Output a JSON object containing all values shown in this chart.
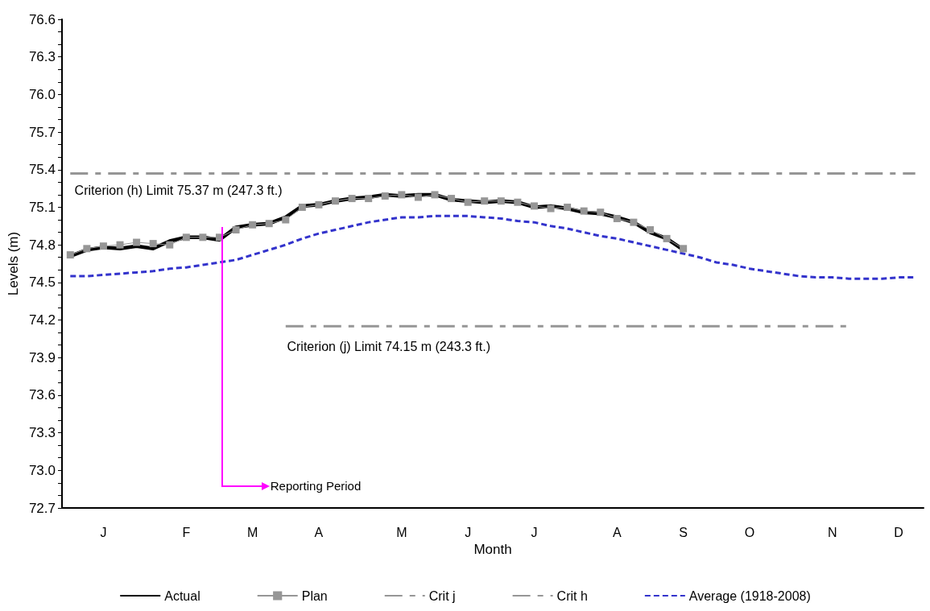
{
  "chart_data": {
    "type": "line",
    "xlabel": "Month",
    "ylabel": "Levels (m)",
    "categories": [
      null,
      null,
      "J",
      null,
      null,
      null,
      null,
      "F",
      null,
      null,
      null,
      "M",
      null,
      null,
      null,
      "A",
      null,
      null,
      null,
      null,
      "M",
      null,
      null,
      null,
      "J",
      null,
      null,
      null,
      "J",
      null,
      null,
      null,
      null,
      "A",
      null,
      null,
      null,
      "S",
      null,
      null,
      null,
      "O",
      null,
      null,
      null,
      null,
      "N",
      null,
      null,
      null,
      "D",
      null
    ],
    "ylim": [
      72.7,
      76.6
    ],
    "yticks": [
      72.7,
      {
        "value": 73,
        "label": "73.0"
      },
      73.3,
      73.6,
      73.9,
      74.2,
      74.5,
      74.8,
      75.1,
      75.4,
      75.7,
      {
        "value": 76,
        "label": "76.0"
      },
      76.3,
      76.6
    ],
    "grid": false,
    "legend": "bottom",
    "series": [
      {
        "name": "Actual",
        "color": "#000000",
        "marker": "none",
        "line_style": "solid",
        "values": [
          74.71,
          74.76,
          74.78,
          74.77,
          74.79,
          74.77,
          74.83,
          74.86,
          74.86,
          74.84,
          74.94,
          74.96,
          74.97,
          75.02,
          75.11,
          75.12,
          75.15,
          75.17,
          75.18,
          75.2,
          75.19,
          75.2,
          75.2,
          75.16,
          75.15,
          75.14,
          75.15,
          75.14,
          75.1,
          75.11,
          75.09,
          75.06,
          75.05,
          75.02,
          74.98,
          74.9,
          74.85,
          74.76,
          null,
          null,
          null,
          null,
          null,
          null,
          null,
          null,
          null,
          null,
          null,
          null,
          null,
          null
        ]
      },
      {
        "name": "Plan",
        "color": "#969696",
        "marker": "square",
        "line_style": "solid",
        "values": [
          74.72,
          74.77,
          74.79,
          74.8,
          74.82,
          74.81,
          74.8,
          74.86,
          74.86,
          74.86,
          74.92,
          74.96,
          74.97,
          75.0,
          75.1,
          75.12,
          75.15,
          75.17,
          75.17,
          75.19,
          75.2,
          75.18,
          75.2,
          75.17,
          75.14,
          75.15,
          75.15,
          75.14,
          75.11,
          75.09,
          75.1,
          75.07,
          75.06,
          75.01,
          74.98,
          74.92,
          74.85,
          74.77,
          null,
          null,
          null,
          null,
          null,
          null,
          null,
          null,
          null,
          null,
          null,
          null,
          null,
          null
        ]
      },
      {
        "name": "Crit j",
        "color": "#969696",
        "marker": "none",
        "line_style": "dashed",
        "values": [
          null,
          null,
          null,
          null,
          null,
          null,
          null,
          null,
          null,
          null,
          null,
          null,
          null,
          74.15,
          74.15,
          74.15,
          74.15,
          74.15,
          74.15,
          74.15,
          74.15,
          74.15,
          74.15,
          74.15,
          74.15,
          74.15,
          74.15,
          74.15,
          74.15,
          74.15,
          74.15,
          74.15,
          74.15,
          74.15,
          74.15,
          74.15,
          74.15,
          74.15,
          74.15,
          74.15,
          74.15,
          74.15,
          74.15,
          74.15,
          74.15,
          74.15,
          74.15,
          74.15,
          null,
          null,
          null,
          null
        ]
      },
      {
        "name": "Crit h",
        "color": "#969696",
        "marker": "none",
        "line_style": "dashed",
        "values": [
          75.37,
          75.37,
          75.37,
          75.37,
          75.37,
          75.37,
          75.37,
          75.37,
          75.37,
          75.37,
          75.37,
          75.37,
          75.37,
          75.37,
          75.37,
          75.37,
          75.37,
          75.37,
          75.37,
          75.37,
          75.37,
          75.37,
          75.37,
          75.37,
          75.37,
          75.37,
          75.37,
          75.37,
          75.37,
          75.37,
          75.37,
          75.37,
          75.37,
          75.37,
          75.37,
          75.37,
          75.37,
          75.37,
          75.37,
          75.37,
          75.37,
          75.37,
          75.37,
          75.37,
          75.37,
          75.37,
          75.37,
          75.37,
          75.37,
          75.37,
          75.37,
          75.37
        ]
      },
      {
        "name": "Average (1918-2008)",
        "color": "#3333cc",
        "marker": "none",
        "line_style": "dotted",
        "values": [
          74.55,
          74.55,
          74.56,
          74.57,
          74.58,
          74.59,
          74.61,
          74.62,
          74.64,
          74.66,
          74.68,
          74.72,
          74.76,
          74.8,
          74.85,
          74.89,
          74.92,
          74.95,
          74.98,
          75.0,
          75.02,
          75.02,
          75.03,
          75.03,
          75.03,
          75.02,
          75.01,
          74.99,
          74.98,
          74.95,
          74.93,
          74.9,
          74.87,
          74.85,
          74.82,
          74.79,
          74.76,
          74.73,
          74.7,
          74.66,
          74.64,
          74.61,
          74.59,
          74.57,
          74.55,
          74.54,
          74.54,
          74.53,
          74.53,
          74.53,
          74.54,
          74.54
        ]
      }
    ],
    "annotations": [
      "Criterion (h) Limit 75.37 m (247.3 ft.)",
      "Criterion (j) Limit 74.15 m (243.3 ft.)",
      "Reporting Period"
    ]
  }
}
